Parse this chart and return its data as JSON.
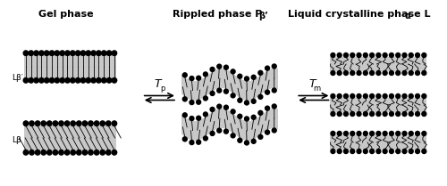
{
  "figsize": [
    5.0,
    2.09
  ],
  "dpi": 100,
  "bg_color": "#ffffff",
  "phase1_title": "Gel phase",
  "phase2_title": "Rippled phase P",
  "phase2_subscript": "β’",
  "phase3_title": "Liquid crystalline phase L",
  "phase3_subscript": "α",
  "label_Lbeta_prime": "Lβ′",
  "label_Lbeta": "Lβ",
  "arrow1_label": "T",
  "arrow1_subscript": "p",
  "arrow2_label": "T",
  "arrow2_subscript": "m",
  "gray_light": "#c8c8c8",
  "black": "#000000",
  "title_fontsize": 8,
  "label_fontsize": 6.5
}
